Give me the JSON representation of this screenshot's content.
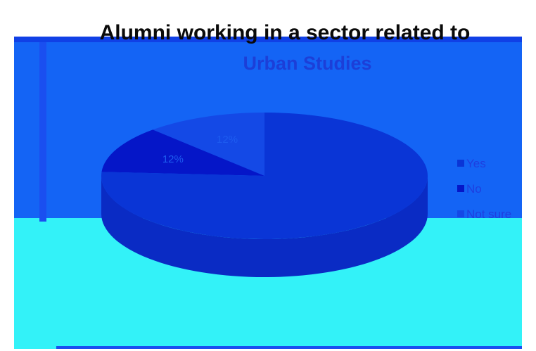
{
  "chart_data": {
    "type": "pie",
    "title_line1": "Alumni working in a sector related to",
    "title_line2": "Urban Studies",
    "slices": [
      {
        "label": "Yes",
        "value": 76,
        "display": "",
        "color": "#0a35d6"
      },
      {
        "label": "No",
        "value": 12,
        "display": "12%",
        "color": "#0516c8"
      },
      {
        "label": "Not sure",
        "value": 12,
        "display": "12%",
        "color": "#1449e6"
      }
    ],
    "legend_position": "right",
    "colors": {
      "background_top": "#1464f5",
      "background_bottom": "#33f2f8",
      "title_color": "#0a0a0a",
      "subtitle_color": "#1c3fd8",
      "pie_side": "#0a2bc4"
    }
  }
}
